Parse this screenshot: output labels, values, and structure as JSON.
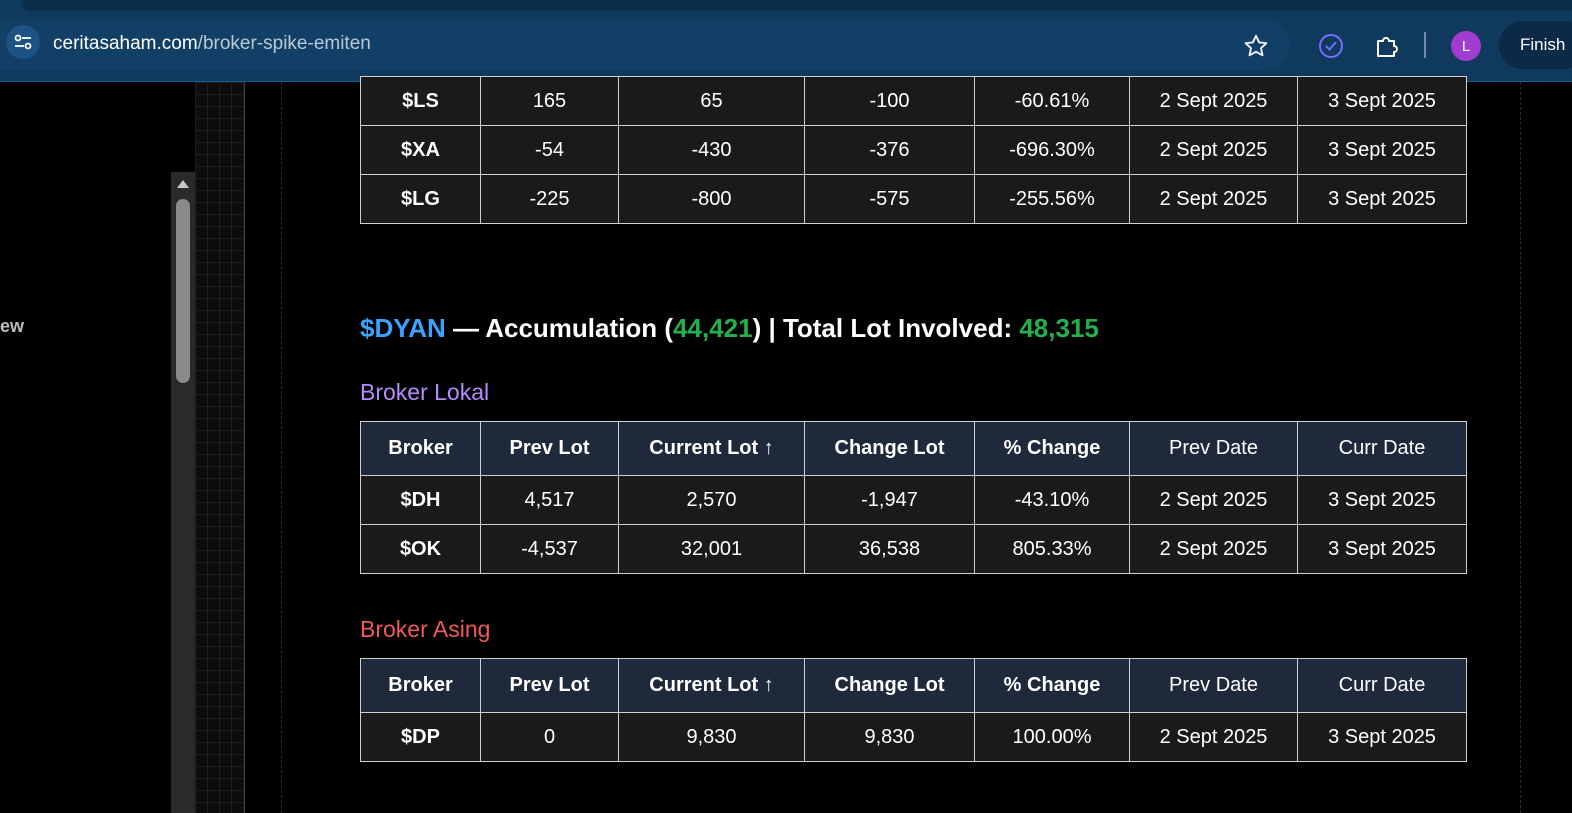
{
  "browser": {
    "url_host": "ceritasaham.com",
    "url_path": "/broker-spike-emiten",
    "avatar_letter": "L",
    "finish_label": "Finish"
  },
  "left_panel": {
    "partial_text": "ew"
  },
  "headers": [
    "Broker",
    "Prev Lot",
    "Current Lot ↑",
    "Change Lot",
    "% Change",
    "Prev Date",
    "Curr Date"
  ],
  "top_table": {
    "rows": [
      [
        "$LS",
        "165",
        "65",
        "-100",
        "-60.61%",
        "2 Sept 2025",
        "3 Sept 2025"
      ],
      [
        "$XA",
        "-54",
        "-430",
        "-376",
        "-696.30%",
        "2 Sept 2025",
        "3 Sept 2025"
      ],
      [
        "$LG",
        "-225",
        "-800",
        "-575",
        "-255.56%",
        "2 Sept 2025",
        "3 Sept 2025"
      ]
    ]
  },
  "section": {
    "ticker": "$DYAN",
    "dash_text": " — Accumulation (",
    "accumulation": "44,421",
    "mid_text": ") | Total Lot Involved: ",
    "total_lot": "48,315"
  },
  "lokal": {
    "title": "Broker Lokal",
    "rows": [
      [
        "$DH",
        "4,517",
        "2,570",
        "-1,947",
        "-43.10%",
        "2 Sept 2025",
        "3 Sept 2025"
      ],
      [
        "$OK",
        "-4,537",
        "32,001",
        "36,538",
        "805.33%",
        "2 Sept 2025",
        "3 Sept 2025"
      ]
    ]
  },
  "asing": {
    "title": "Broker Asing",
    "rows": [
      [
        "$DP",
        "0",
        "9,830",
        "9,830",
        "100.00%",
        "2 Sept 2025",
        "3 Sept 2025"
      ]
    ]
  },
  "colors": {
    "ticker": "#3ba3ff",
    "negative": "#f05a5a",
    "positive": "#3ed27a",
    "lokal": "#b58cff",
    "asing": "#f05a5a"
  }
}
